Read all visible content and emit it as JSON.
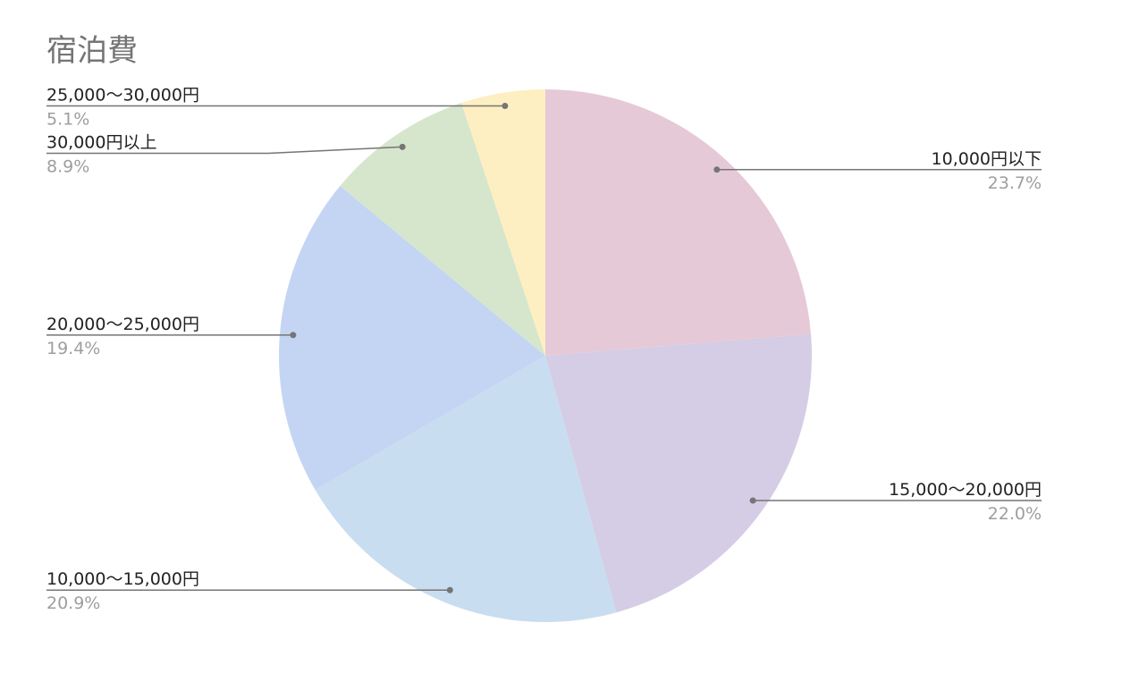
{
  "chart_data": {
    "type": "pie",
    "title": "宿泊費",
    "categories": [
      "10,000円以下",
      "15,000〜20,000円",
      "10,000〜15,000円",
      "20,000〜25,000円",
      "30,000円以上",
      "25,000〜30,000円"
    ],
    "values": [
      23.7,
      22.0,
      20.9,
      19.4,
      8.9,
      5.1
    ],
    "value_labels": [
      "23.7%",
      "22.0%",
      "20.9%",
      "19.4%",
      "8.9%",
      "5.1%"
    ],
    "colors": [
      "#e6c9d6",
      "#d5cce6",
      "#c9ddf0",
      "#c3d5f3",
      "#d6e6cd",
      "#fdefc1"
    ]
  }
}
